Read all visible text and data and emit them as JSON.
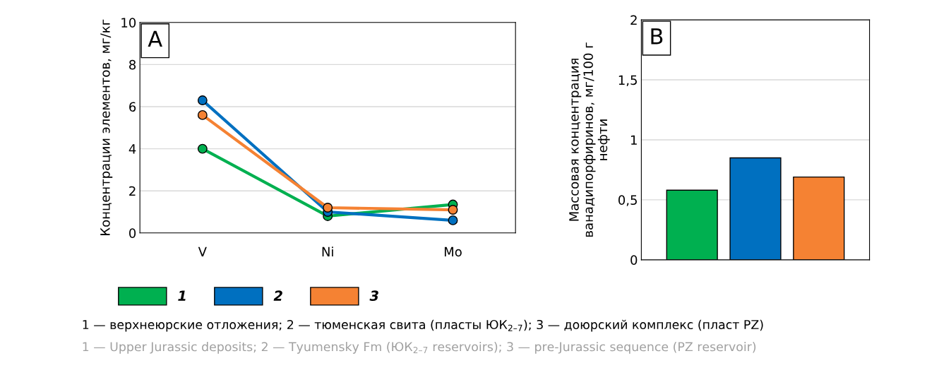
{
  "chart_data": [
    {
      "type": "line",
      "title": "A",
      "ylabel": "Концентрации элементов, мг/кг",
      "categories": [
        "V",
        "Ni",
        "Mo"
      ],
      "ylim": [
        0,
        10
      ],
      "yticks": [
        0,
        2,
        4,
        6,
        8,
        10
      ],
      "grid": "y",
      "marker": "circle",
      "legend": "bottom",
      "series": [
        {
          "name": "1",
          "color": "#00b050",
          "values": [
            4.0,
            0.8,
            1.35
          ]
        },
        {
          "name": "2",
          "color": "#0070c0",
          "values": [
            6.3,
            1.0,
            0.6
          ]
        },
        {
          "name": "3",
          "color": "#f58233",
          "values": [
            5.6,
            1.2,
            1.1
          ]
        }
      ],
      "annotations": [
        "1 — верхнеюрские отложения; 2 — тюменская свита (пласты ЮК$_{2–7}$); 3 — доюрский комплекс (пласт PZ)",
        "1 — Upper Jurassic deposits; 2 — Tyumensky Fm (ЮК$_{2–7}$ reservoirs); 3 — pre-Jurassic sequence (PZ reservoir)"
      ]
    },
    {
      "type": "bar",
      "title": "B",
      "ylabel": "Массовая концентрация\nванадипорфиринов, мг/100 г\nнефти",
      "categories": [
        null,
        null,
        null
      ],
      "values": [
        0.58,
        0.85,
        0.69
      ],
      "colors": [
        "#00b050",
        "#0070c0",
        "#f58233"
      ],
      "ylim": [
        0,
        2
      ],
      "yticks": [
        0,
        {
          "value": 0.5,
          "label": "0,5"
        },
        1,
        {
          "value": 1.5,
          "label": "1,5"
        },
        2
      ],
      "grid": "y"
    }
  ]
}
